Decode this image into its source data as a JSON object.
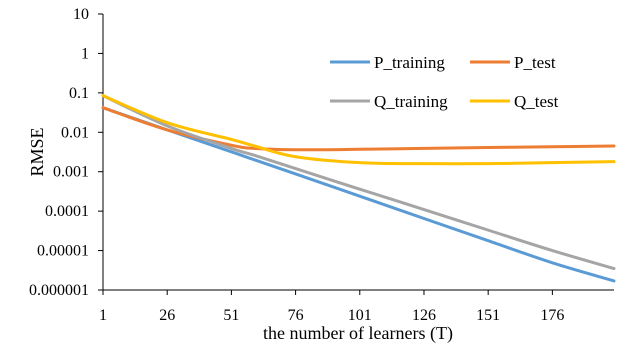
{
  "chart_data": {
    "type": "line",
    "title": "",
    "xlabel": "the number of learners (T)",
    "ylabel": "RMSE",
    "xlim": [
      1,
      200
    ],
    "ylim": [
      1e-06,
      10
    ],
    "yscale": "log",
    "x_ticks": [
      "1",
      "26",
      "51",
      "76",
      "101",
      "126",
      "151",
      "176"
    ],
    "y_ticks": [
      "10",
      "1",
      "0.1",
      "0.01",
      "0.001",
      "0.0001",
      "0.00001",
      "0.000001"
    ],
    "grid": false,
    "legend": "right",
    "x": [
      1,
      26,
      51,
      60,
      76,
      101,
      126,
      151,
      176,
      200
    ],
    "series": [
      {
        "name": "P_training",
        "color": "#5B9BD5",
        "values": [
          0.042,
          0.0115,
          0.0032,
          0.002,
          0.00088,
          0.00024,
          6.5e-05,
          1.78e-05,
          4.9e-06,
          1.7e-06
        ]
      },
      {
        "name": "P_test",
        "color": "#ED7D31",
        "values": [
          0.042,
          0.0115,
          0.0047,
          0.0039,
          0.0036,
          0.0037,
          0.0039,
          0.0041,
          0.0043,
          0.0045
        ]
      },
      {
        "name": "Q_training",
        "color": "#A5A5A5",
        "values": [
          0.085,
          0.0145,
          0.0039,
          0.0026,
          0.0012,
          0.00036,
          0.00011,
          3.3e-05,
          1e-05,
          3.5e-06
        ]
      },
      {
        "name": "Q_test",
        "color": "#FFC000",
        "values": [
          0.085,
          0.0175,
          0.0066,
          0.0045,
          0.0024,
          0.0017,
          0.0016,
          0.0016,
          0.0017,
          0.0018
        ]
      }
    ]
  }
}
